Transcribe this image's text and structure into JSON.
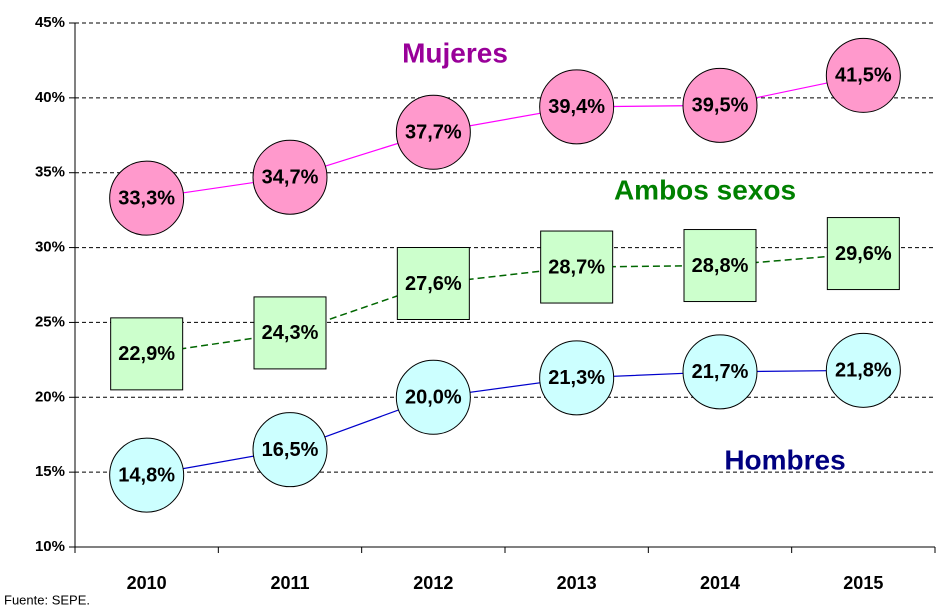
{
  "chart_data": {
    "type": "line",
    "categories": [
      "2010",
      "2011",
      "2012",
      "2013",
      "2014",
      "2015"
    ],
    "series": [
      {
        "name": "Mujeres",
        "color": "#ff00ff",
        "marker": "circle",
        "marker_color": "#ff99cc",
        "name_color": "#990099",
        "line_style": "solid",
        "values": [
          33.3,
          34.7,
          37.7,
          39.4,
          39.5,
          41.5
        ],
        "value_labels": [
          "33,3%",
          "34,7%",
          "37,7%",
          "39,4%",
          "39,5%",
          "41,5%"
        ]
      },
      {
        "name": "Ambos sexos",
        "color": "#006600",
        "marker": "square",
        "marker_color": "#ccffcc",
        "name_color": "#008000",
        "line_style": "dashed",
        "values": [
          22.9,
          24.3,
          27.6,
          28.7,
          28.8,
          29.6
        ],
        "value_labels": [
          "22,9%",
          "24,3%",
          "27,6%",
          "28,7%",
          "28,8%",
          "29,6%"
        ]
      },
      {
        "name": "Hombres",
        "color": "#0000cc",
        "marker": "circle",
        "marker_color": "#ccffff",
        "name_color": "#000080",
        "line_style": "solid",
        "values": [
          14.8,
          16.5,
          20.0,
          21.3,
          21.7,
          21.8
        ],
        "value_labels": [
          "14,8%",
          "16,5%",
          "20,0%",
          "21,3%",
          "21,7%",
          "21,8%"
        ]
      }
    ],
    "ylim": [
      10,
      45
    ],
    "yticks": [
      {
        "value": 10,
        "label": "10%"
      },
      {
        "value": 15,
        "label": "15%"
      },
      {
        "value": 20,
        "label": "20%"
      },
      {
        "value": 25,
        "label": "25%"
      },
      {
        "value": 30,
        "label": "30%"
      },
      {
        "value": 35,
        "label": "35%"
      },
      {
        "value": 40,
        "label": "40%"
      },
      {
        "value": 45,
        "label": "45%"
      }
    ],
    "grid": true,
    "source": "Fuente: SEPE."
  }
}
